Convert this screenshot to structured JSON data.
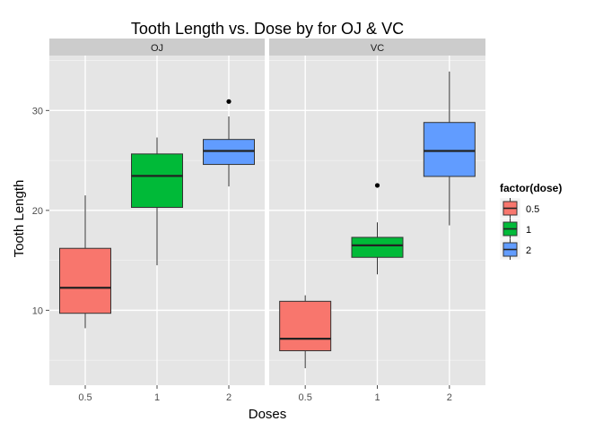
{
  "chart_data": {
    "type": "boxplot",
    "title": "Tooth Length vs. Dose  by for OJ & VC",
    "xlabel": "Doses",
    "ylabel": "Tooth Length",
    "categories": [
      "0.5",
      "1",
      "2"
    ],
    "ylim": [
      2.5,
      35.5
    ],
    "yticks": [
      10,
      20,
      30
    ],
    "grid": true,
    "facets": [
      {
        "name": "OJ",
        "boxes": [
          {
            "dose": "0.5",
            "min": 8.2,
            "q1": 9.7,
            "median": 12.25,
            "q3": 16.2,
            "max": 21.5,
            "outliers": []
          },
          {
            "dose": "1",
            "min": 14.5,
            "q1": 20.3,
            "median": 23.45,
            "q3": 25.65,
            "max": 27.3,
            "outliers": []
          },
          {
            "dose": "2",
            "min": 22.4,
            "q1": 24.6,
            "median": 25.95,
            "q3": 27.1,
            "max": 29.4,
            "outliers": [
              30.9
            ]
          }
        ]
      },
      {
        "name": "VC",
        "boxes": [
          {
            "dose": "0.5",
            "min": 4.2,
            "q1": 5.95,
            "median": 7.15,
            "q3": 10.9,
            "max": 11.5,
            "outliers": []
          },
          {
            "dose": "1",
            "min": 13.6,
            "q1": 15.3,
            "median": 16.5,
            "q3": 17.3,
            "max": 18.8,
            "outliers": [
              22.5
            ]
          },
          {
            "dose": "2",
            "min": 18.5,
            "q1": 23.4,
            "median": 25.95,
            "q3": 28.8,
            "max": 33.9,
            "outliers": []
          }
        ]
      }
    ],
    "legend": {
      "title": "factor(dose)",
      "placement": "right",
      "items": [
        {
          "label": "0.5",
          "color": "#F8766D"
        },
        {
          "label": "1",
          "color": "#00BA38"
        },
        {
          "label": "2",
          "color": "#619CFF"
        }
      ]
    },
    "colors": {
      "panel_bg": "#E5E5E5",
      "strip_bg": "#CCCCCC",
      "grid_major": "#FFFFFF",
      "grid_minor": "#F2F2F2",
      "tick_text": "#4D4D4D"
    }
  }
}
